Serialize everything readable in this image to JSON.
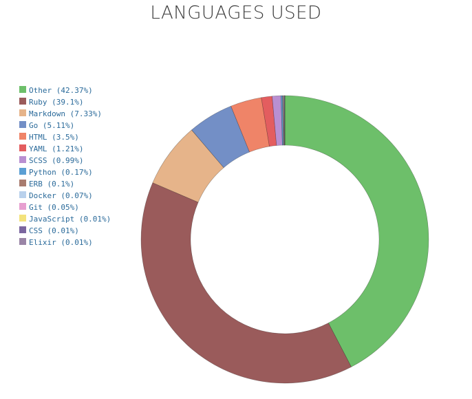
{
  "chart_data": {
    "type": "pie",
    "title": "LANGUAGES USED",
    "legend_position": "left",
    "series": [
      {
        "name": "Other",
        "value": 42.37,
        "color": "#6dbf6a"
      },
      {
        "name": "Ruby",
        "value": 39.1,
        "color": "#9a5b5b"
      },
      {
        "name": "Markdown",
        "value": 7.33,
        "color": "#e6b48a"
      },
      {
        "name": "Go",
        "value": 5.11,
        "color": "#738fc6"
      },
      {
        "name": "HTML",
        "value": 3.5,
        "color": "#ef8468"
      },
      {
        "name": "YAML",
        "value": 1.21,
        "color": "#e35d5f"
      },
      {
        "name": "SCSS",
        "value": 0.99,
        "color": "#b98fd1"
      },
      {
        "name": "Python",
        "value": 0.17,
        "color": "#5b9fd4"
      },
      {
        "name": "ERB",
        "value": 0.1,
        "color": "#a87c6f"
      },
      {
        "name": "Docker",
        "value": 0.07,
        "color": "#b9d1ec"
      },
      {
        "name": "Git",
        "value": 0.05,
        "color": "#e79fd0"
      },
      {
        "name": "JavaScript",
        "value": 0.01,
        "color": "#f3e27c"
      },
      {
        "name": "CSS",
        "value": 0.01,
        "color": "#7b669f"
      },
      {
        "name": "Elixir",
        "value": 0.01,
        "color": "#9a85a6"
      }
    ]
  }
}
